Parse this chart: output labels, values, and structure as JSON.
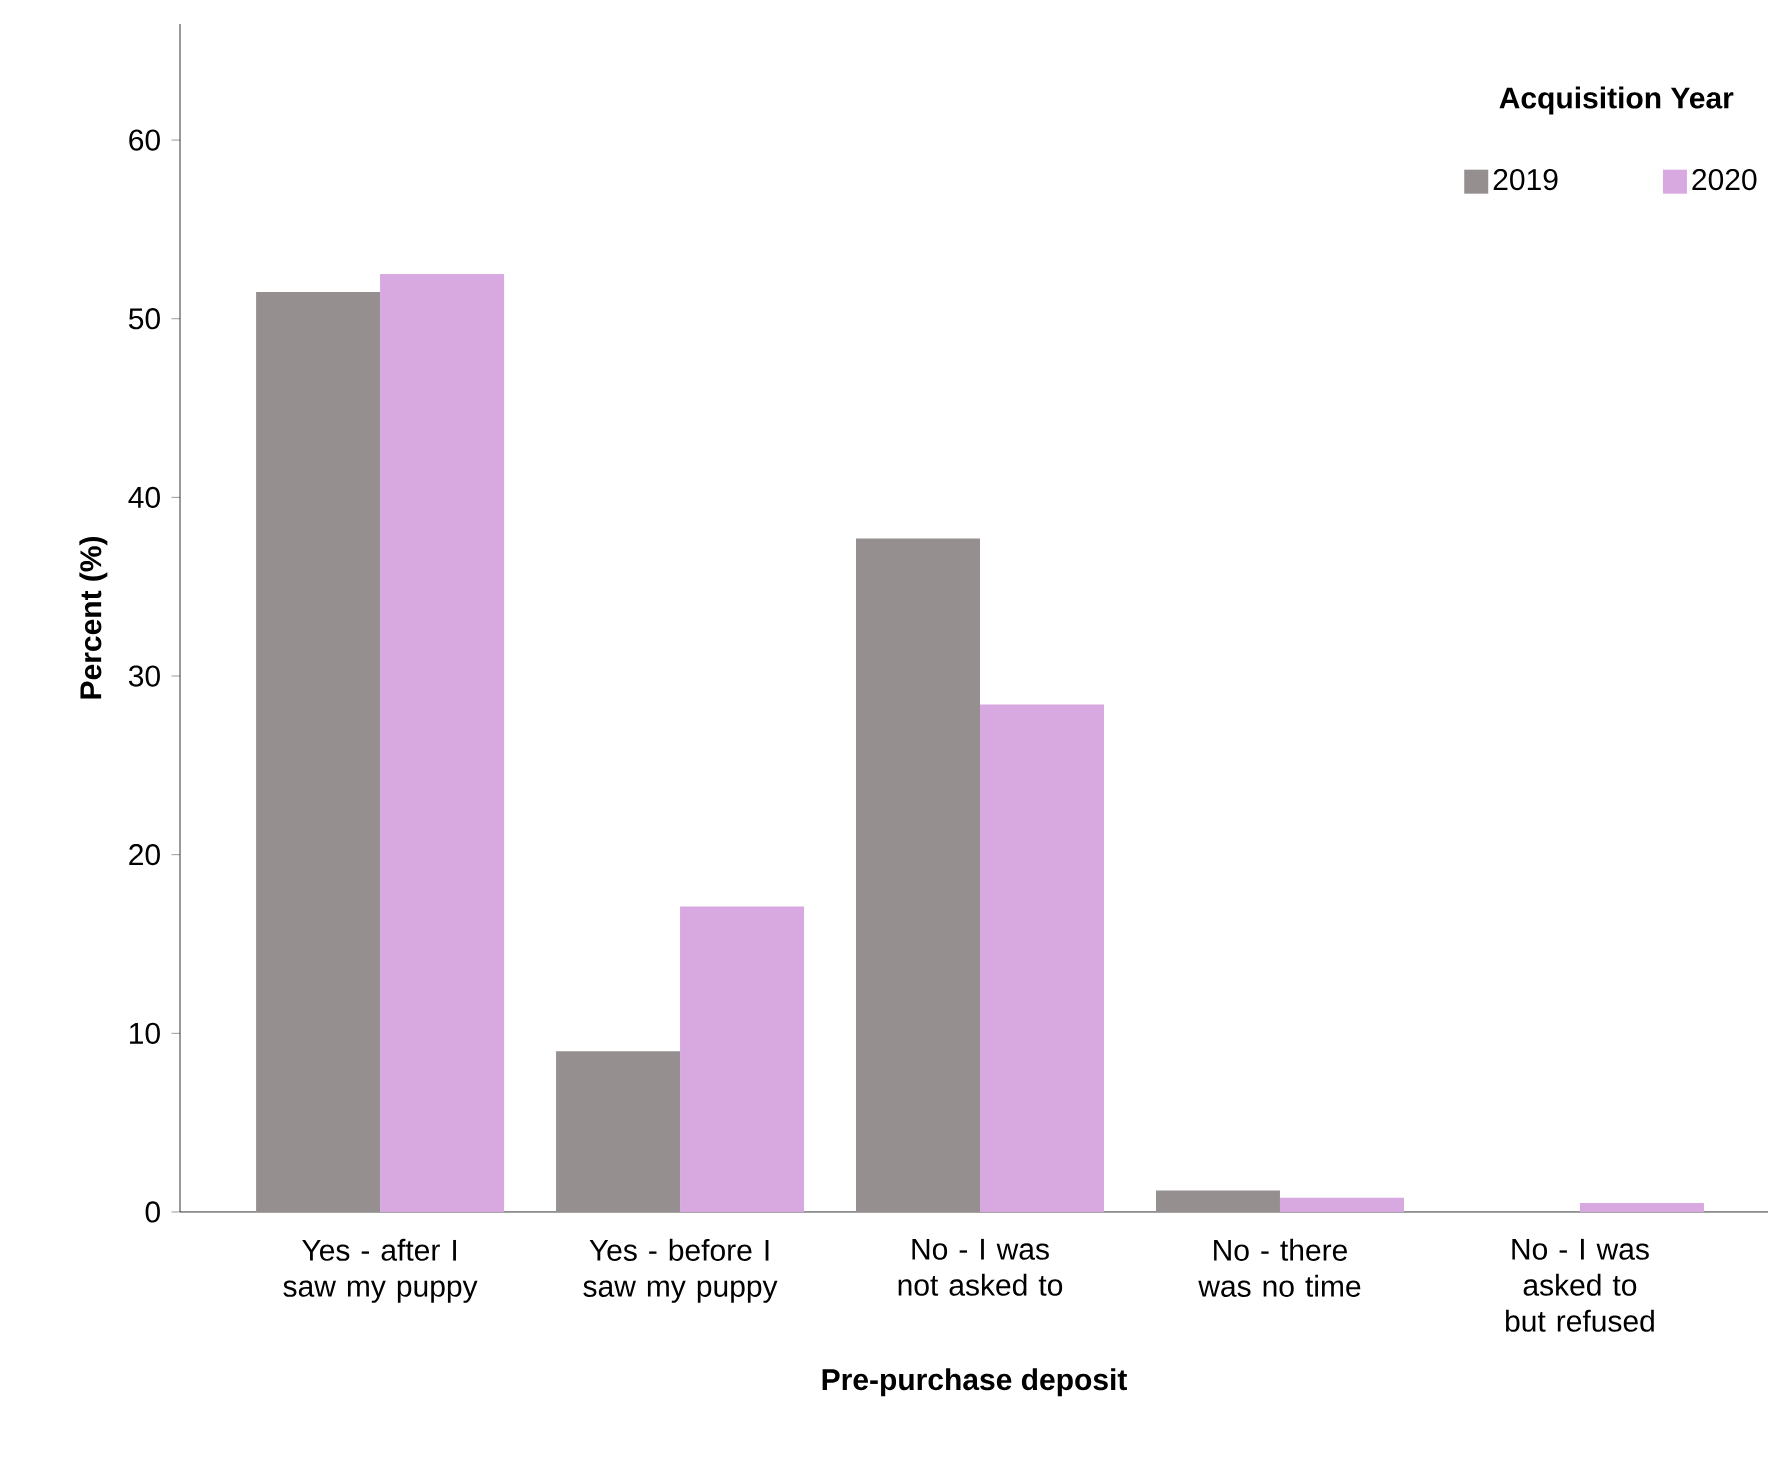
{
  "chart_data": {
    "type": "bar",
    "xlabel": "Pre-purchase deposit",
    "ylabel": "Percent (%)",
    "legend_title": "Acquisition Year",
    "categories": [
      "Yes - after I saw my puppy",
      "Yes - before I saw my puppy",
      "No - I was not asked to",
      "No - there was no time",
      "No - I was asked to but refused"
    ],
    "series": [
      {
        "name": "2019",
        "color": "#968f8f",
        "values": [
          51.5,
          9.0,
          37.7,
          1.2,
          0
        ]
      },
      {
        "name": "2020",
        "color": "#d8a8e1",
        "values": [
          52.5,
          17.1,
          28.4,
          0.8,
          0.5
        ]
      }
    ],
    "ylim": [
      0,
      66.5
    ],
    "yticks": [
      0,
      10,
      20,
      30,
      40,
      50,
      60
    ],
    "legend": "top right"
  }
}
